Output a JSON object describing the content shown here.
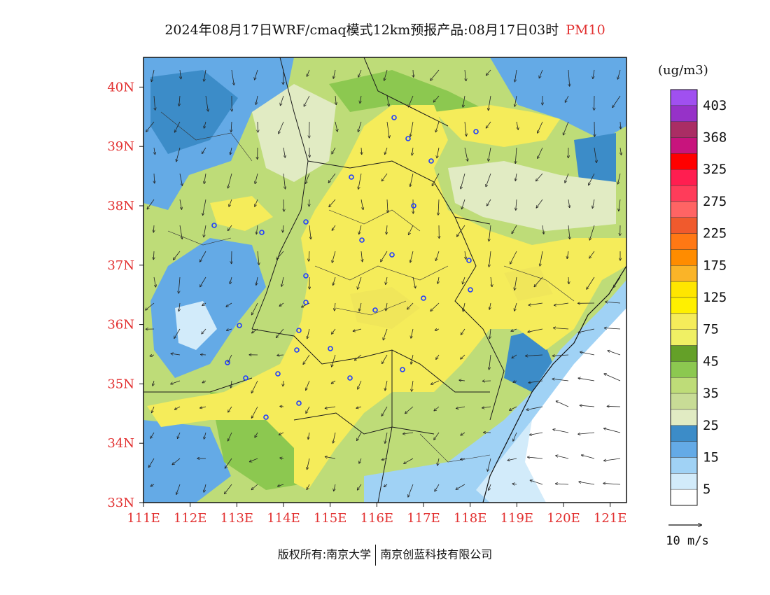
{
  "header": {
    "title": "2024年08月17日WRF/cmaq模式12km预报产品:08月17日03时",
    "pollutant": "PM10"
  },
  "legend": {
    "unit": "(ug/m3)",
    "bins": [
      {
        "label": "403",
        "color": "#a050f0"
      },
      {
        "label": "",
        "color": "#9632c8"
      },
      {
        "label": "368",
        "color": "#aa2d64"
      },
      {
        "label": "",
        "color": "#c8147d"
      },
      {
        "label": "325",
        "color": "#ff0000"
      },
      {
        "label": "",
        "color": "#ff1e50"
      },
      {
        "label": "275",
        "color": "#ff3c5a"
      },
      {
        "label": "",
        "color": "#ff6464"
      },
      {
        "label": "225",
        "color": "#f05a2d"
      },
      {
        "label": "",
        "color": "#ff7814"
      },
      {
        "label": "175",
        "color": "#ff8c00"
      },
      {
        "label": "",
        "color": "#fab428"
      },
      {
        "label": "125",
        "color": "#ffe600"
      },
      {
        "label": "",
        "color": "#fff000"
      },
      {
        "label": "75",
        "color": "#f5ec5a"
      },
      {
        "label": "",
        "color": "#f0f064"
      },
      {
        "label": "45",
        "color": "#64a028"
      },
      {
        "label": "",
        "color": "#8cc850"
      },
      {
        "label": "35",
        "color": "#bedc78"
      },
      {
        "label": "",
        "color": "#c8dc96"
      },
      {
        "label": "25",
        "color": "#e1ebc3"
      },
      {
        "label": "",
        "color": "#3c8cc8"
      },
      {
        "label": "15",
        "color": "#64aae6"
      },
      {
        "label": "",
        "color": "#a0d2f5"
      },
      {
        "label": "5",
        "color": "#d2ebfa"
      },
      {
        "label": "",
        "color": "#ffffff"
      }
    ]
  },
  "wind_reference": "10 m/s",
  "axes": {
    "lat_labels": [
      "40N",
      "39N",
      "38N",
      "37N",
      "36N",
      "35N",
      "34N",
      "33N"
    ],
    "lon_labels": [
      "111E",
      "112E",
      "113E",
      "114E",
      "115E",
      "116E",
      "117E",
      "118E",
      "119E",
      "120E",
      "121E"
    ],
    "label_color": "#e23030"
  },
  "footer": {
    "left": "版权所有:南京大学",
    "right": "南京创蓝科技有限公司"
  }
}
